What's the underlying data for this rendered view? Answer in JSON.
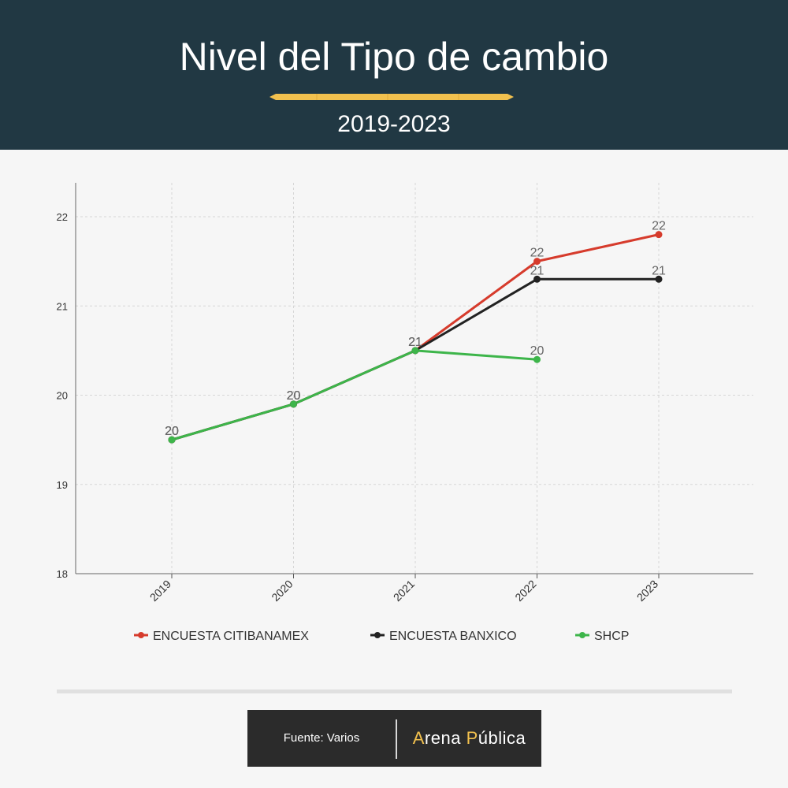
{
  "header": {
    "title": "Nivel del Tipo de cambio",
    "subtitle": "2019-2023",
    "rule_color": "#f2c14e",
    "background": "#213843"
  },
  "chart_data": {
    "type": "line",
    "title": "Nivel del Tipo de cambio",
    "subtitle": "2019-2023",
    "xlabel": "",
    "ylabel": "",
    "categories": [
      "2019",
      "2020",
      "2021",
      "2022",
      "2023"
    ],
    "ylim": [
      18,
      22.4
    ],
    "yticks": [
      18,
      19,
      20,
      21,
      22
    ],
    "grid": true,
    "legend_position": "bottom",
    "series": [
      {
        "name": "ENCUESTA CITIBANAMEX",
        "color": "#d63b2c",
        "values": [
          19.5,
          19.9,
          20.5,
          21.5,
          21.8
        ],
        "labels": [
          "20",
          "20",
          "21",
          "22",
          "22"
        ]
      },
      {
        "name": "ENCUESTA BANXICO",
        "color": "#222222",
        "values": [
          19.5,
          19.9,
          20.5,
          21.3,
          21.3
        ],
        "labels": [
          "20",
          "20",
          "21",
          "21",
          "21"
        ]
      },
      {
        "name": "SHCP",
        "color": "#3db54a",
        "values": [
          19.5,
          19.9,
          20.5,
          20.4,
          null
        ],
        "labels": [
          "20",
          "20",
          "21",
          "20",
          null
        ]
      }
    ]
  },
  "footer": {
    "source": "Fuente: Varios",
    "brand_a_first": "A",
    "brand_a_rest": "rena ",
    "brand_p_first": "P",
    "brand_p_rest": "ública"
  }
}
